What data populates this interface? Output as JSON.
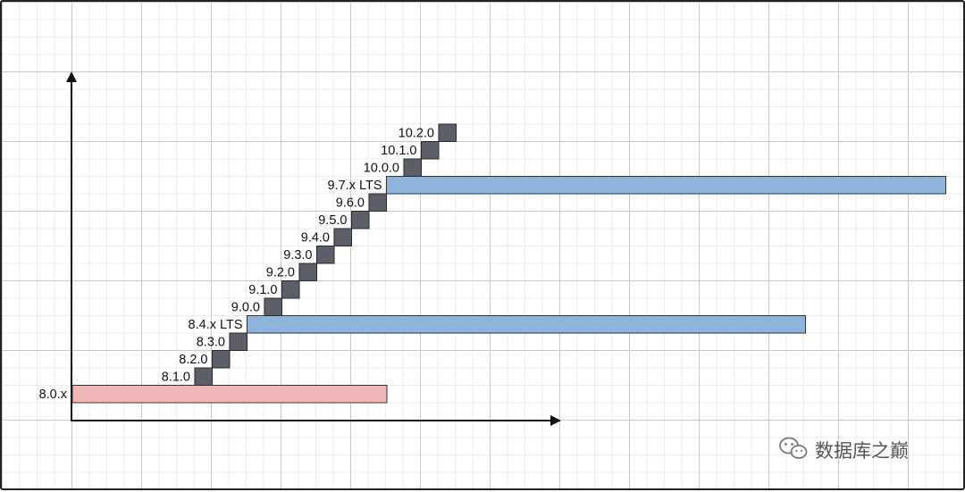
{
  "diagram": {
    "base_release": {
      "label": "8.0.x",
      "color": "#f2b8b8"
    },
    "lts_color": "#8fb4dc",
    "step_color": "#5c5e6a",
    "steps": [
      {
        "label": "8.1.0",
        "type": "minor"
      },
      {
        "label": "8.2.0",
        "type": "minor"
      },
      {
        "label": "8.3.0",
        "type": "minor"
      },
      {
        "label": "8.4.x LTS",
        "type": "lts"
      },
      {
        "label": "9.0.0",
        "type": "minor"
      },
      {
        "label": "9.1.0",
        "type": "minor"
      },
      {
        "label": "9.2.0",
        "type": "minor"
      },
      {
        "label": "9.3.0",
        "type": "minor"
      },
      {
        "label": "9.4.0",
        "type": "minor"
      },
      {
        "label": "9.5.0",
        "type": "minor"
      },
      {
        "label": "9.6.0",
        "type": "minor"
      },
      {
        "label": "9.7.x LTS",
        "type": "lts"
      },
      {
        "label": "10.0.0",
        "type": "minor"
      },
      {
        "label": "10.1.0",
        "type": "minor"
      },
      {
        "label": "10.2.0",
        "type": "minor"
      }
    ]
  },
  "watermark": {
    "text": "数据库之巅",
    "icon": "wechat-icon"
  }
}
